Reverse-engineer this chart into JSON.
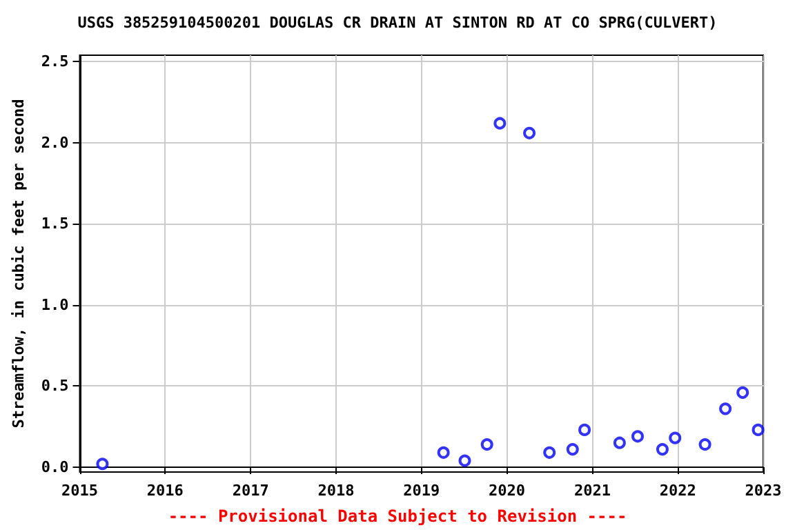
{
  "chart_data": {
    "type": "scatter",
    "title": "USGS 385259104500201 DOUGLAS CR DRAIN AT SINTON RD AT CO SPRG(CULVERT)",
    "ylabel": "Streamflow, in cubic feet per second",
    "annotations": [
      "---- Provisional Data Subject to Revision ----"
    ],
    "x": [
      "2015-04-08",
      "2019-04-05",
      "2019-07-05",
      "2019-10-08",
      "2019-12-02",
      "2020-04-06",
      "2020-07-01",
      "2020-10-08",
      "2020-11-28",
      "2021-04-27",
      "2021-07-13",
      "2021-10-27",
      "2021-12-20",
      "2022-04-27",
      "2022-07-23",
      "2022-10-05",
      "2022-12-10"
    ],
    "values": [
      0.02,
      0.09,
      0.04,
      0.14,
      2.12,
      2.06,
      0.09,
      0.11,
      0.23,
      0.15,
      0.19,
      0.11,
      0.18,
      0.14,
      0.36,
      0.46,
      0.23
    ],
    "color": "#0000ff",
    "marker": "circle",
    "grid": true,
    "xlim": [
      "2015",
      "2023"
    ],
    "xticks": [
      "2015",
      "2016",
      "2017",
      "2018",
      "2019",
      "2020",
      "2021",
      "2022",
      "2023"
    ],
    "ylim": [
      -0.03,
      2.54
    ],
    "yticks": [
      {
        "value": 0,
        "label": "0.0"
      },
      {
        "value": 0.5,
        "label": "0.5"
      },
      {
        "value": 1,
        "label": "1.0"
      },
      {
        "value": 1.5,
        "label": "1.5"
      },
      {
        "value": 2,
        "label": "2.0"
      },
      {
        "value": 2.5,
        "label": "2.5"
      }
    ]
  }
}
